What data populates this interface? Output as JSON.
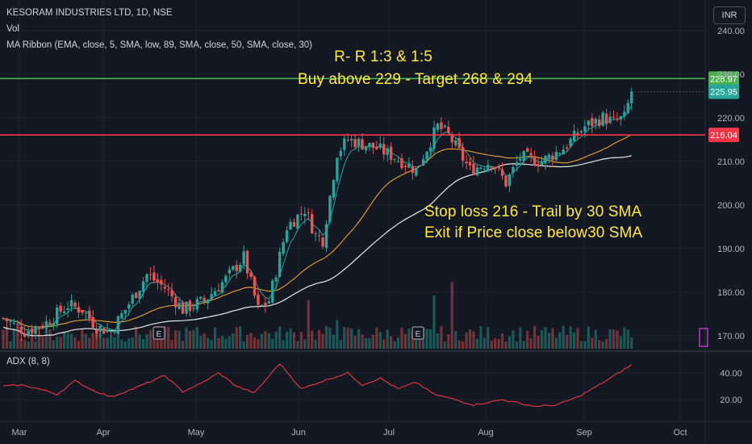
{
  "header": {
    "symbol_line": "KESORAM INDUSTRIES LTD, 1D, NSE",
    "vol_label": "Vol",
    "ma_ribbon_label": "MA Ribbon (EMA, close, 5, SMA, low, 89, SMA, close, 50, SMA, close, 30)",
    "currency_button": "INR"
  },
  "annotations": {
    "rr_line": "R- R 1:3 & 1:5",
    "buy_line": "Buy above 229 - Target 268 & 294",
    "stop_line": "Stop loss 216 -  Trail by 30 SMA",
    "exit_line": "Exit if Price close below30 SMA"
  },
  "adx_label": "ADX (8, 8)",
  "colors": {
    "background": "#141823",
    "up": "#26a69a",
    "down": "#ef5350",
    "green_level": "#4caf50",
    "red_level": "#f23645",
    "annotation": "#ffeb3b",
    "ema5": "#26a69a",
    "sma30": "#f0a030",
    "sma50": "#e8e8e8",
    "adx": "#f23645"
  },
  "chart_data": {
    "type": "candlestick",
    "price_axis": {
      "ticks": [
        "240.00",
        "230.00",
        "220.00",
        "210.00",
        "200.00",
        "190.00",
        "180.00",
        "170.00"
      ],
      "ylim": [
        167,
        247
      ]
    },
    "adx_axis": {
      "ticks": [
        "40.00",
        "20.00"
      ],
      "ylim": [
        5,
        55
      ]
    },
    "x_labels": [
      "Mar",
      "Apr",
      "May",
      "Jun",
      "Jul",
      "Aug",
      "Sep",
      "Oct"
    ],
    "levels": [
      {
        "name": "buy",
        "value": 228.97,
        "label": "228.97"
      },
      {
        "name": "stop",
        "value": 216.04,
        "label": "216.04"
      }
    ],
    "last_price": {
      "value": 225.95,
      "label": "225.95"
    },
    "earnings_marker": "E",
    "earnings_dates_month_index": [
      1.6,
      4.3
    ],
    "ohlc_waypoints_close": [
      [
        0,
        174
      ],
      [
        6,
        171
      ],
      [
        12,
        173
      ],
      [
        18,
        177
      ],
      [
        22,
        176
      ],
      [
        26,
        172
      ],
      [
        30,
        171
      ],
      [
        34,
        176
      ],
      [
        40,
        184
      ],
      [
        45,
        181
      ],
      [
        50,
        176
      ],
      [
        56,
        178
      ],
      [
        62,
        183
      ],
      [
        67,
        188
      ],
      [
        71,
        176
      ],
      [
        74,
        178
      ],
      [
        79,
        195
      ],
      [
        84,
        199
      ],
      [
        87,
        193
      ],
      [
        89,
        192
      ],
      [
        93,
        212
      ],
      [
        96,
        215
      ],
      [
        104,
        213
      ],
      [
        109,
        211
      ],
      [
        115,
        208
      ],
      [
        121,
        218
      ],
      [
        124,
        216
      ],
      [
        130,
        208
      ],
      [
        136,
        210
      ],
      [
        140,
        205
      ],
      [
        144,
        211
      ],
      [
        150,
        210
      ],
      [
        156,
        213
      ],
      [
        162,
        218
      ],
      [
        167,
        220
      ],
      [
        170,
        219
      ],
      [
        173,
        220
      ],
      [
        175,
        226
      ]
    ],
    "volume_peaks": [
      [
        85,
        0.55
      ],
      [
        93,
        0.32
      ],
      [
        120,
        0.6
      ],
      [
        125,
        0.75
      ]
    ],
    "adx_waypoints": [
      [
        0,
        30
      ],
      [
        5,
        31
      ],
      [
        10,
        28
      ],
      [
        15,
        24
      ],
      [
        20,
        34
      ],
      [
        25,
        27
      ],
      [
        30,
        22
      ],
      [
        37,
        29
      ],
      [
        45,
        38
      ],
      [
        50,
        26
      ],
      [
        55,
        32
      ],
      [
        60,
        40
      ],
      [
        65,
        30
      ],
      [
        70,
        25
      ],
      [
        77,
        47
      ],
      [
        83,
        28
      ],
      [
        88,
        33
      ],
      [
        96,
        40
      ],
      [
        100,
        31
      ],
      [
        105,
        36
      ],
      [
        110,
        28
      ],
      [
        115,
        33
      ],
      [
        120,
        24
      ],
      [
        126,
        20
      ],
      [
        131,
        16
      ],
      [
        139,
        20
      ],
      [
        148,
        15
      ],
      [
        154,
        16
      ],
      [
        160,
        22
      ],
      [
        166,
        31
      ],
      [
        172,
        41
      ],
      [
        175,
        46
      ]
    ]
  }
}
